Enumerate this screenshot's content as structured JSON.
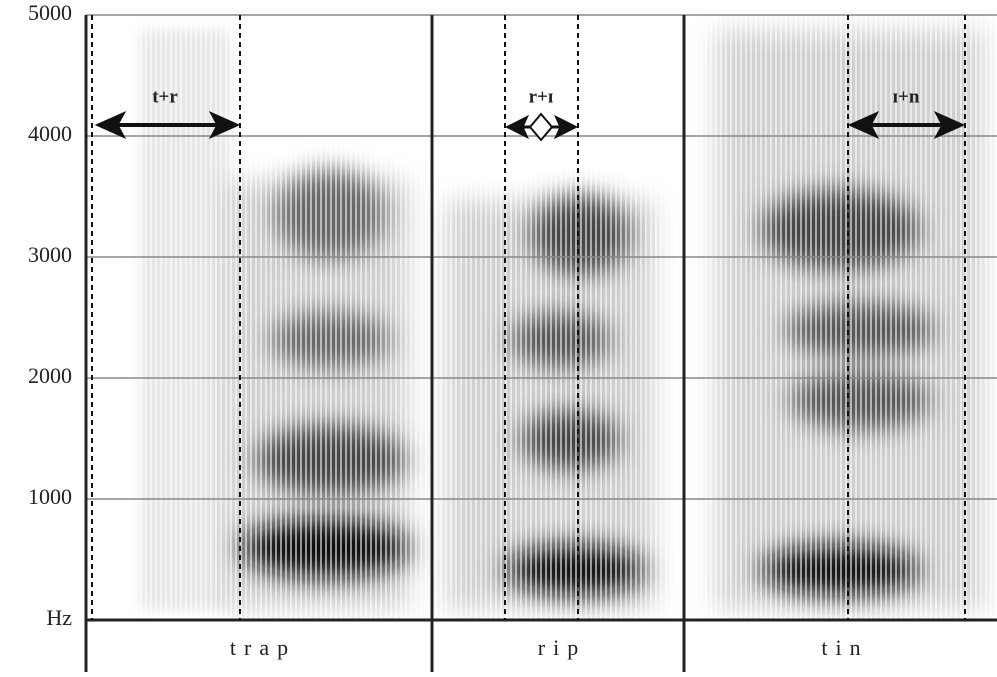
{
  "chart_data": {
    "type": "spectrogram",
    "ylim": [
      0,
      5000
    ],
    "yticks": [
      {
        "value": 0,
        "label": "Hz"
      },
      1000,
      2000,
      3000,
      4000,
      5000
    ],
    "grid": true,
    "segments": [
      "trap",
      "rip",
      "tin"
    ],
    "annotations": [
      "t+r",
      "r+ɪ",
      "ɪ+n"
    ]
  }
}
